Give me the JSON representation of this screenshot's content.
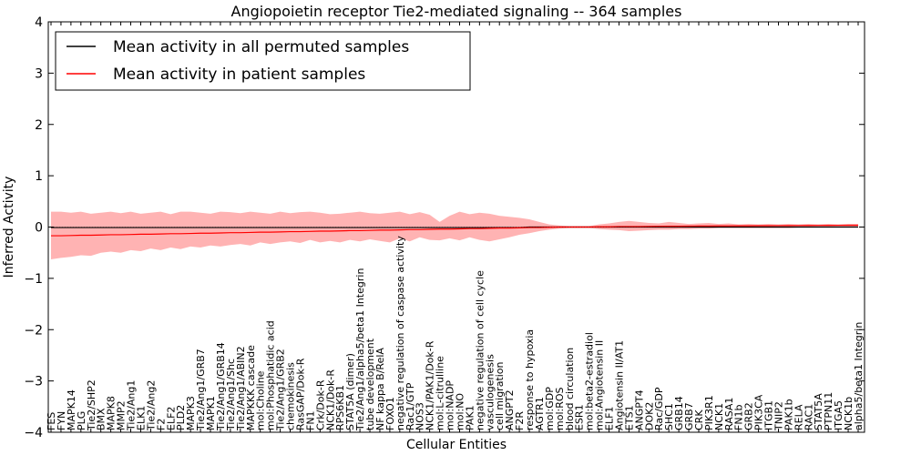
{
  "chart_data": {
    "type": "line",
    "title": "Angiopoietin receptor Tie2-mediated signaling -- 364 samples",
    "xlabel": "Cellular Entities",
    "ylabel": "Inferred Activity",
    "ylim": [
      -4,
      4
    ],
    "yticks": [
      "−4",
      "−3",
      "−2",
      "−1",
      "0",
      "1",
      "2",
      "3",
      "4"
    ],
    "ytick_values": [
      -4,
      -3,
      -2,
      -1,
      0,
      1,
      2,
      3,
      4
    ],
    "legend_position": "upper-left",
    "categories": [
      "FES",
      "FYN",
      "MAPK14",
      "PLG",
      "Tie2/SHP2",
      "BMX",
      "MAPK8",
      "MMP2",
      "Tie2/Ang1",
      "ELK1",
      "Tie2/Ang2",
      "F2",
      "ELF2",
      "PLD2",
      "MAPK3",
      "Tie2/Ang1/GRB7",
      "MAPK1",
      "Tie2/Ang1/GRB14",
      "Tie2/Ang1/Shc",
      "Tie2/Ang1/ABIN2",
      "MAPKKK cascade",
      "mol:Choline",
      "mol:Phosphatidic acid",
      "Tie2/Ang1/GRB2",
      "chemokinesis",
      "RasGAP/Dok-R",
      "FN1",
      "Crk/Dok-R",
      "NCK1/Dok-R",
      "RPS6KB1",
      "STAT5A (dimer)",
      "Tie2/Ang1/alpha5/beta1 Integrin",
      "tube development",
      "NF kappa B/RelA",
      "FOXO1",
      "negative regulation of caspase activity",
      "Rac1/GTP",
      "NOS3",
      "NCK1/PAK1/Dok-R",
      "mol:L-citrulline",
      "mol:NADP",
      "mol:NO",
      "PAK1",
      "negative regulation of cell cycle",
      "vasculogenesis",
      "cell migration",
      "ANGPT2",
      "F2R",
      "response to hypoxia",
      "AGTR1",
      "mol:GDP",
      "mol:ROS",
      "blood circulation",
      "ESR1",
      "mol:beta2-estradiol",
      "mol:Angiotensin II",
      "ELF1",
      "Angiotensin II/AT1",
      "ETS1",
      "ANGPT4",
      "DOK2",
      "Rac/GDP",
      "SHC1",
      "GRB14",
      "GRB7",
      "CRK",
      "PIK3R1",
      "NCK1",
      "RASA1",
      "FN1b",
      "GRB2",
      "PIK3CA",
      "ITGB1",
      "TNIP2",
      "PAK1b",
      "RELA",
      "RAC1",
      "STAT5A",
      "PTPN11",
      "ITGA5",
      "NCK1b",
      "alpha5/beta1 Integrin"
    ],
    "series": [
      {
        "name": "Mean activity in all permuted samples",
        "color": "#000000",
        "values": [
          -0.01,
          -0.01,
          -0.01,
          -0.01,
          -0.01,
          -0.01,
          -0.01,
          -0.01,
          -0.01,
          -0.01,
          -0.01,
          -0.01,
          -0.01,
          -0.01,
          -0.01,
          -0.01,
          -0.01,
          -0.01,
          -0.01,
          -0.01,
          -0.01,
          -0.01,
          -0.01,
          -0.01,
          -0.01,
          -0.01,
          -0.01,
          -0.01,
          -0.01,
          -0.01,
          -0.01,
          -0.01,
          -0.01,
          -0.01,
          -0.01,
          -0.01,
          -0.01,
          -0.01,
          -0.01,
          -0.01,
          -0.01,
          -0.01,
          -0.01,
          -0.01,
          -0.01,
          -0.01,
          -0.01,
          -0.01,
          0.0,
          0.0,
          0.0,
          0.0,
          0.0,
          0.0,
          0.0,
          0.0,
          0.0,
          0.0,
          0.0,
          0.0,
          0.0,
          0.0,
          0.0,
          0.0,
          0.0,
          0.0,
          0.0,
          0.0,
          0.0,
          0.0,
          0.0,
          0.0,
          0.0,
          0.0,
          0.0,
          0.0,
          0.0,
          0.0,
          0.0,
          0.0,
          0.0,
          0.0
        ]
      },
      {
        "name": "Mean activity in patient samples",
        "color": "#ff0000",
        "values": [
          -0.17,
          -0.17,
          -0.165,
          -0.16,
          -0.16,
          -0.155,
          -0.15,
          -0.15,
          -0.145,
          -0.14,
          -0.14,
          -0.135,
          -0.13,
          -0.13,
          -0.125,
          -0.12,
          -0.12,
          -0.115,
          -0.11,
          -0.11,
          -0.105,
          -0.1,
          -0.1,
          -0.095,
          -0.09,
          -0.09,
          -0.085,
          -0.08,
          -0.08,
          -0.075,
          -0.07,
          -0.07,
          -0.065,
          -0.06,
          -0.06,
          -0.055,
          -0.05,
          -0.05,
          -0.045,
          -0.04,
          -0.04,
          -0.035,
          -0.03,
          -0.03,
          -0.025,
          -0.02,
          -0.02,
          -0.015,
          -0.01,
          -0.01,
          -0.005,
          0.0,
          0.0,
          0.0,
          0.0,
          0.005,
          0.005,
          0.01,
          0.01,
          0.01,
          0.012,
          0.014,
          0.015,
          0.016,
          0.018,
          0.02,
          0.021,
          0.022,
          0.023,
          0.024,
          0.025,
          0.026,
          0.027,
          0.028,
          0.029,
          0.03,
          0.031,
          0.032,
          0.033,
          0.034,
          0.035,
          0.036
        ]
      }
    ],
    "band_upper": [
      0.3,
      0.3,
      0.28,
      0.3,
      0.26,
      0.28,
      0.3,
      0.27,
      0.3,
      0.26,
      0.28,
      0.3,
      0.25,
      0.3,
      0.3,
      0.28,
      0.26,
      0.3,
      0.29,
      0.27,
      0.3,
      0.28,
      0.26,
      0.3,
      0.27,
      0.29,
      0.3,
      0.28,
      0.25,
      0.26,
      0.28,
      0.3,
      0.27,
      0.26,
      0.28,
      0.3,
      0.25,
      0.29,
      0.24,
      0.1,
      0.22,
      0.3,
      0.25,
      0.28,
      0.26,
      0.22,
      0.2,
      0.18,
      0.15,
      0.1,
      0.05,
      0.03,
      0.02,
      0.02,
      0.02,
      0.05,
      0.07,
      0.1,
      0.12,
      0.1,
      0.08,
      0.07,
      0.1,
      0.08,
      0.06,
      0.07,
      0.08,
      0.06,
      0.07,
      0.05,
      0.06,
      0.05,
      0.06,
      0.05,
      0.06,
      0.05,
      0.06,
      0.05,
      0.06,
      0.05,
      0.06,
      0.06
    ],
    "band_lower": [
      -0.63,
      -0.6,
      -0.58,
      -0.55,
      -0.56,
      -0.5,
      -0.48,
      -0.5,
      -0.45,
      -0.47,
      -0.42,
      -0.45,
      -0.4,
      -0.43,
      -0.38,
      -0.4,
      -0.36,
      -0.38,
      -0.35,
      -0.33,
      -0.36,
      -0.3,
      -0.33,
      -0.3,
      -0.28,
      -0.31,
      -0.25,
      -0.3,
      -0.27,
      -0.3,
      -0.25,
      -0.28,
      -0.24,
      -0.27,
      -0.3,
      -0.22,
      -0.28,
      -0.2,
      -0.25,
      -0.26,
      -0.22,
      -0.26,
      -0.2,
      -0.25,
      -0.28,
      -0.24,
      -0.2,
      -0.15,
      -0.12,
      -0.08,
      -0.05,
      -0.03,
      -0.02,
      -0.02,
      -0.02,
      -0.04,
      -0.05,
      -0.06,
      -0.08,
      -0.07,
      -0.06,
      -0.05,
      -0.05,
      -0.04,
      -0.04,
      -0.03,
      -0.03,
      -0.02,
      -0.02,
      -0.02,
      -0.02,
      -0.02,
      -0.02,
      -0.02,
      -0.02,
      -0.01,
      -0.01,
      -0.01,
      -0.01,
      -0.01,
      -0.01,
      -0.01
    ],
    "band_color": "#ff9999"
  }
}
